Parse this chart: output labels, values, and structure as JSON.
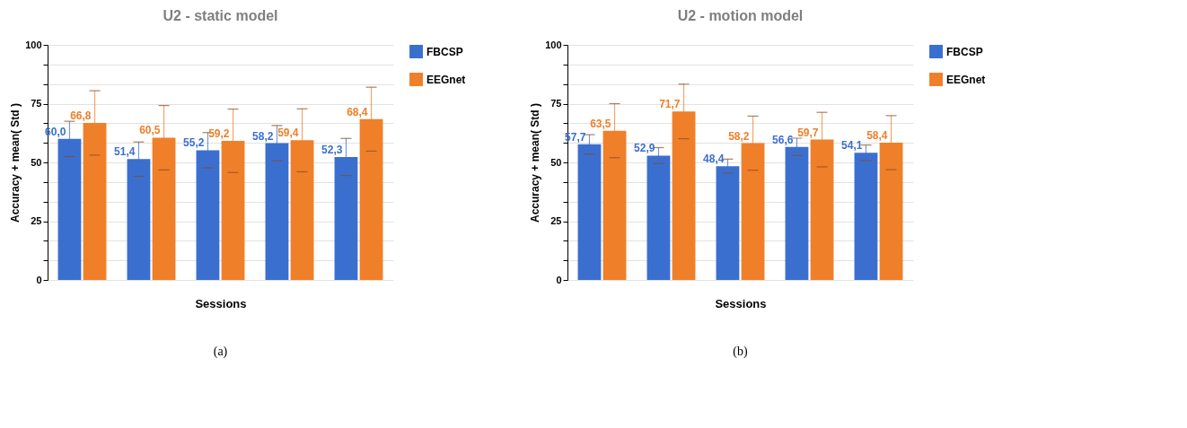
{
  "chart_data": [
    {
      "type": "bar",
      "title": "U2 - static model",
      "xlabel": "Sessions",
      "ylabel": "Accuracy + mean( Std )",
      "categories": [
        null,
        null,
        null,
        null,
        null
      ],
      "series": [
        {
          "name": "FBCSP",
          "color": "#3b6fcf",
          "values": [
            60.0,
            51.4,
            55.2,
            58.2,
            52.3
          ],
          "errors": [
            7.5,
            7.3,
            7.5,
            7.5,
            7.9
          ],
          "value_labels": [
            "60,0",
            "51,4",
            "55,2",
            "58,2",
            "52,3"
          ]
        },
        {
          "name": "EEGnet",
          "color": "#f07f2a",
          "values": [
            66.8,
            60.5,
            59.2,
            59.4,
            68.4
          ],
          "errors": [
            13.7,
            13.7,
            13.5,
            13.4,
            13.6
          ],
          "value_labels": [
            "66,8",
            "60,5",
            "59,2",
            "59,4",
            "68,4"
          ]
        }
      ],
      "ylim": [
        0,
        100
      ],
      "yticks": [
        0,
        {
          "value": 8.33,
          "label": null
        },
        {
          "value": 16.67,
          "label": null
        },
        25,
        {
          "value": 33.33,
          "label": null
        },
        {
          "value": 41.67,
          "label": null
        },
        50,
        {
          "value": 58.33,
          "label": null
        },
        {
          "value": 66.67,
          "label": null
        },
        75,
        {
          "value": 83.33,
          "label": null
        },
        {
          "value": 91.67,
          "label": null
        },
        100
      ],
      "grid": "y",
      "legend": "top right",
      "tick_labels": "y",
      "annotations": [
        "(a)"
      ]
    },
    {
      "type": "bar",
      "title": "U2 - motion model",
      "xlabel": "Sessions",
      "ylabel": "Accuracy + mean( Std )",
      "categories": [
        null,
        null,
        null,
        null,
        null
      ],
      "series": [
        {
          "name": "FBCSP",
          "color": "#3b6fcf",
          "values": [
            57.7,
            52.9,
            48.4,
            56.6,
            54.1
          ],
          "errors": [
            4.1,
            3.4,
            3.0,
            3.7,
            3.3
          ],
          "value_labels": [
            "57,7",
            "52,9",
            "48,4",
            "56,6",
            "54,1"
          ]
        },
        {
          "name": "EEGnet",
          "color": "#f07f2a",
          "values": [
            63.5,
            71.7,
            58.2,
            59.7,
            58.4
          ],
          "errors": [
            11.5,
            11.6,
            11.5,
            11.6,
            11.5
          ],
          "value_labels": [
            "63,5",
            "71,7",
            "58,2",
            "59,7",
            "58,4"
          ]
        }
      ],
      "ylim": [
        0,
        100
      ],
      "yticks": [
        0,
        {
          "value": 8.33,
          "label": null
        },
        {
          "value": 16.67,
          "label": null
        },
        25,
        {
          "value": 33.33,
          "label": null
        },
        {
          "value": 41.67,
          "label": null
        },
        50,
        {
          "value": 58.33,
          "label": null
        },
        {
          "value": 66.67,
          "label": null
        },
        75,
        {
          "value": 83.33,
          "label": null
        },
        {
          "value": 91.67,
          "label": null
        },
        100
      ],
      "grid": "y",
      "legend": "top right",
      "tick_labels": "y",
      "annotations": [
        "(b)"
      ]
    }
  ]
}
